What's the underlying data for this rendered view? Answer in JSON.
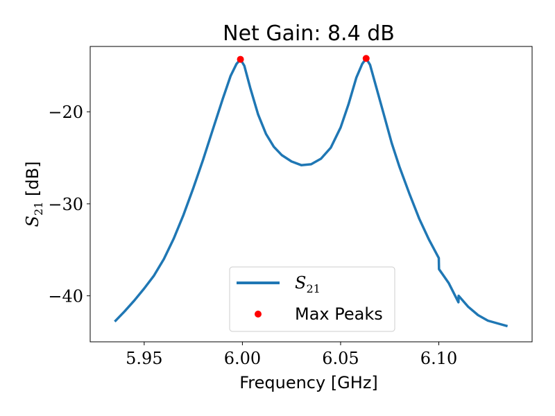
{
  "chart_data": {
    "type": "line",
    "title": "Net Gain: 8.4 dB",
    "xlabel": "Frequency [GHz]",
    "ylabel_main": "S",
    "ylabel_sub": "21",
    "ylabel_unit": " [dB]",
    "xlim": [
      5.9225,
      6.1475
    ],
    "ylim": [
      -45.0,
      -12.9
    ],
    "xticks": [
      5.95,
      6.0,
      6.05,
      6.1
    ],
    "xtick_labels": [
      "5.95",
      "6.00",
      "6.05",
      "6.10"
    ],
    "yticks": [
      -20,
      -30,
      -40
    ],
    "ytick_labels": [
      "−20",
      "−30",
      "−40"
    ],
    "grid": false,
    "legend_placement": "lower-center",
    "series": [
      {
        "name_main": "S",
        "name_sub": "21",
        "color": "#1f77b4",
        "kind": "line",
        "x": [
          5.935,
          5.94,
          5.945,
          5.95,
          5.955,
          5.96,
          5.965,
          5.97,
          5.975,
          5.98,
          5.985,
          5.99,
          5.994,
          5.997,
          5.999,
          6.001,
          6.004,
          6.008,
          6.012,
          6.016,
          6.02,
          6.025,
          6.03,
          6.035,
          6.04,
          6.045,
          6.05,
          6.054,
          6.058,
          6.061,
          6.063,
          6.065,
          6.068,
          6.072,
          6.076,
          6.08,
          6.085,
          6.09,
          6.095,
          6.1,
          6.1001,
          6.105,
          6.11,
          6.1101,
          6.115,
          6.12,
          6.125,
          6.13,
          6.135
        ],
        "y": [
          -42.8,
          -41.7,
          -40.5,
          -39.2,
          -37.8,
          -36.0,
          -33.8,
          -31.2,
          -28.3,
          -25.2,
          -21.9,
          -18.6,
          -16.1,
          -14.8,
          -14.3,
          -15.0,
          -17.4,
          -20.3,
          -22.4,
          -23.8,
          -24.7,
          -25.4,
          -25.8,
          -25.7,
          -25.1,
          -23.9,
          -21.7,
          -19.2,
          -16.3,
          -14.8,
          -14.2,
          -14.9,
          -17.2,
          -20.3,
          -23.4,
          -26.0,
          -28.9,
          -31.6,
          -33.9,
          -35.9,
          -37.1,
          -38.6,
          -40.7,
          -40.0,
          -41.2,
          -42.1,
          -42.7,
          -43.0,
          -43.3
        ]
      },
      {
        "name": "Max Peaks",
        "color": "#ff0000",
        "kind": "scatter",
        "x": [
          5.999,
          6.063
        ],
        "y": [
          -14.3,
          -14.2
        ]
      }
    ]
  }
}
